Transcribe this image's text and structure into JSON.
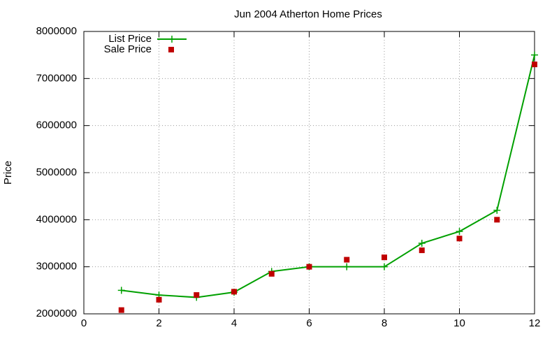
{
  "chart_data": {
    "type": "line",
    "title": "Jun 2004 Atherton Home Prices",
    "y_label": "Price",
    "x": [
      1,
      2,
      3,
      4,
      5,
      6,
      7,
      8,
      9,
      10,
      11,
      12
    ],
    "series": [
      {
        "name": "List Price",
        "color": "#00a000",
        "style": "linespoints",
        "values": [
          2500000,
          2400000,
          2350000,
          2460000,
          2900000,
          3000000,
          3000000,
          3000000,
          3500000,
          3750000,
          4200000,
          7500000
        ]
      },
      {
        "name": "Sale Price",
        "color": "#c00000",
        "style": "points",
        "values": [
          2080000,
          2300000,
          2400000,
          2470000,
          2850000,
          3000000,
          3150000,
          3200000,
          3350000,
          3600000,
          4000000,
          7300000
        ]
      }
    ],
    "xlim": [
      0,
      12
    ],
    "xticks": [
      0,
      2,
      4,
      6,
      8,
      10,
      12
    ],
    "ylim": [
      2000000,
      8000000
    ],
    "yticks": [
      2000000,
      3000000,
      4000000,
      5000000,
      6000000,
      7000000,
      8000000
    ],
    "grid": true,
    "legend": "top-left"
  }
}
